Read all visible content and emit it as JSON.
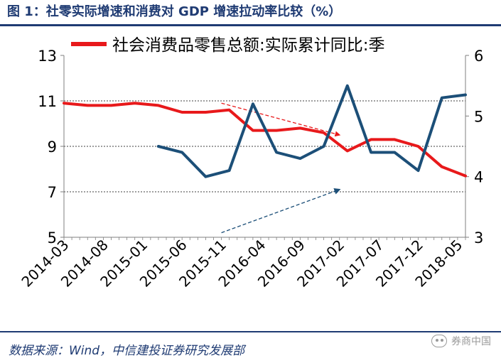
{
  "header": {
    "title": "图 1：社零实际增速和消费对 GDP 增速拉动率比较（%）"
  },
  "footer": {
    "source": "数据来源：Wind，中信建投证券研究发展部",
    "watermark": "券商中国"
  },
  "chart_data": {
    "type": "line",
    "legend_position": "top",
    "grid": "horizontal-dashed",
    "x_tick_labels": [
      "2014-03",
      "2014-08",
      "2015-01",
      "2015-06",
      "2015-11",
      "2016-04",
      "2016-09",
      "2017-02",
      "2017-07",
      "2017-12",
      "2018-05"
    ],
    "x_range": [
      "2014-03",
      "2018-06"
    ],
    "y_left": {
      "ticks": [
        "5",
        "7",
        "9",
        "11",
        "13"
      ],
      "range": [
        5,
        13
      ]
    },
    "y_right": {
      "ticks": [
        "3",
        "4",
        "5",
        "6"
      ],
      "range": [
        3,
        6
      ]
    },
    "series": [
      {
        "name": "社会消费品零售总额:实际累计同比:季",
        "axis": "left",
        "color": "#e8191b",
        "x": [
          "2014-03",
          "2014-06",
          "2014-09",
          "2014-12",
          "2015-03",
          "2015-06",
          "2015-09",
          "2015-12",
          "2016-03",
          "2016-06",
          "2016-09",
          "2016-12",
          "2017-03",
          "2017-06",
          "2017-09",
          "2017-12",
          "2018-03",
          "2018-06"
        ],
        "y": [
          10.9,
          10.8,
          10.8,
          10.9,
          10.8,
          10.5,
          10.5,
          10.6,
          9.7,
          9.7,
          9.8,
          9.6,
          8.8,
          9.3,
          9.3,
          9.0,
          8.1,
          7.7
        ]
      },
      {
        "name": "",
        "axis": "right",
        "color": "#1c4f78",
        "x": [
          "2015-03",
          "2015-06",
          "2015-09",
          "2015-12",
          "2016-03",
          "2016-06",
          "2016-09",
          "2016-12",
          "2017-03",
          "2017-06",
          "2017-09",
          "2017-12",
          "2018-03",
          "2018-06"
        ],
        "y": [
          4.5,
          4.4,
          4.0,
          4.1,
          5.2,
          4.4,
          4.3,
          4.5,
          5.5,
          4.4,
          4.4,
          4.1,
          5.3,
          5.35
        ]
      }
    ],
    "trend_arrows": [
      {
        "color": "#e8191b",
        "from": [
          "2015-11",
          10.9
        ],
        "to": [
          "2017-02",
          9.5
        ]
      },
      {
        "color": "#1c4f78",
        "from": [
          "2015-11",
          5.2
        ],
        "to": [
          "2017-02",
          7.1
        ]
      }
    ]
  }
}
